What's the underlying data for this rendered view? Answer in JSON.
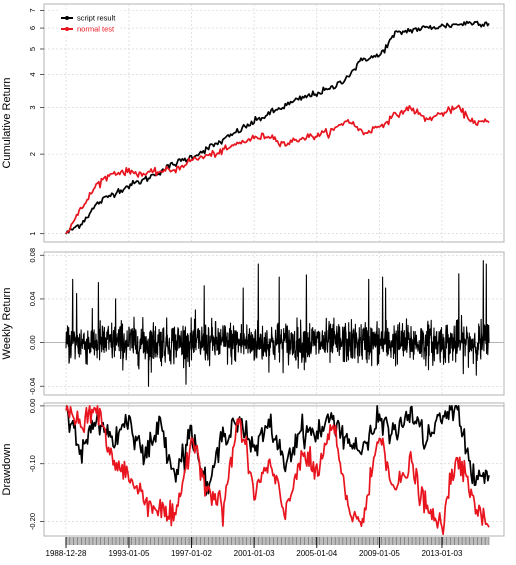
{
  "colors": {
    "script": "#000000",
    "normal": "#e8141e",
    "grid": "#d0d0d0",
    "frame": "#b3b3b3",
    "zero": "#a0a0a0",
    "axis_band": "#bdbdbd"
  },
  "chart_data": [
    {
      "type": "line",
      "panel": "cumulative",
      "ylabel": "Cumulative Return",
      "yscale": "log",
      "yticks": [
        1,
        2,
        3,
        4,
        5,
        6,
        7
      ],
      "ylim": [
        0.93,
        7.4
      ],
      "grid": true,
      "legend": {
        "position": "top-left",
        "entries": [
          "script result",
          "normal test"
        ]
      },
      "x": [
        "1988-12-28",
        "1990-01-03",
        "1991-01-02",
        "1992-01-01",
        "1993-01-05",
        "1994-01-05",
        "1995-01-04",
        "1996-01-03",
        "1997-01-02",
        "1998-01-07",
        "1999-01-06",
        "2000-01-05",
        "2001-01-03",
        "2002-01-02",
        "2003-01-01",
        "2004-01-07",
        "2005-01-04",
        "2006-01-04",
        "2007-01-03",
        "2008-01-02",
        "2009-01-05",
        "2010-01-06",
        "2011-01-05",
        "2012-01-04",
        "2013-01-03",
        "2014-01-01",
        "2015-01-07",
        "2016-01-06"
      ],
      "series": [
        {
          "name": "script result",
          "color": "#000000",
          "values": [
            1.0,
            1.1,
            1.3,
            1.42,
            1.52,
            1.6,
            1.72,
            1.85,
            1.95,
            2.1,
            2.25,
            2.45,
            2.65,
            2.85,
            3.05,
            3.25,
            3.4,
            3.55,
            3.95,
            4.6,
            4.7,
            5.7,
            5.9,
            6.0,
            6.1,
            6.2,
            6.3,
            6.25
          ]
        },
        {
          "name": "normal test",
          "color": "#e8141e",
          "values": [
            1.0,
            1.25,
            1.55,
            1.7,
            1.72,
            1.68,
            1.72,
            1.75,
            1.9,
            1.97,
            2.05,
            2.2,
            2.3,
            2.35,
            2.18,
            2.3,
            2.35,
            2.45,
            2.7,
            2.4,
            2.55,
            2.8,
            3.0,
            2.7,
            2.85,
            3.0,
            2.65,
            2.63
          ]
        }
      ]
    },
    {
      "type": "line",
      "panel": "weekly",
      "ylabel": "Weekly Return",
      "yticks": [
        -0.04,
        0.0,
        0.04,
        0.08
      ],
      "ytick_labels": [
        "-0.04",
        "0.00",
        "0.04",
        "0.08"
      ],
      "ylim": [
        -0.048,
        0.083
      ],
      "grid": true,
      "series": [
        {
          "name": "script result",
          "color": "#000000"
        }
      ],
      "spikes": [
        {
          "x": "1989-06-01",
          "value": 0.058
        },
        {
          "x": "1989-09-01",
          "value": 0.045
        },
        {
          "x": "1991-01-20",
          "value": 0.055
        },
        {
          "x": "1992-03-01",
          "value": 0.04
        },
        {
          "x": "1994-04-10",
          "value": -0.04
        },
        {
          "x": "1997-10-28",
          "value": 0.052
        },
        {
          "x": "2000-04-20",
          "value": 0.05
        },
        {
          "x": "2001-04-10",
          "value": 0.072
        },
        {
          "x": "2002-08-10",
          "value": 0.06
        },
        {
          "x": "2004-05-10",
          "value": 0.062
        },
        {
          "x": "2008-05-01",
          "value": 0.058
        },
        {
          "x": "2009-03-20",
          "value": 0.06
        },
        {
          "x": "2009-06-01",
          "value": 0.05
        },
        {
          "x": "2014-02-01",
          "value": 0.063
        },
        {
          "x": "2015-08-25",
          "value": 0.075
        },
        {
          "x": "2015-11-01",
          "value": 0.072
        }
      ]
    },
    {
      "type": "line",
      "panel": "drawdown",
      "ylabel": "Drawdown",
      "yticks": [
        -0.2,
        -0.1,
        0.0
      ],
      "ytick_labels": [
        "-0.20",
        "-0.10",
        "0.00"
      ],
      "ylim": [
        -0.225,
        0.005
      ],
      "grid": true,
      "xtick_labels": [
        "1988-12-28",
        "1993-01-05",
        "1997-01-02",
        "2001-01-03",
        "2005-01-04",
        "2009-01-05",
        "2013-01-03"
      ],
      "series": [
        {
          "name": "script result",
          "color": "#000000",
          "values": [
            0.0,
            -0.08,
            -0.02,
            -0.06,
            -0.02,
            -0.09,
            -0.03,
            -0.12,
            -0.04,
            -0.15,
            -0.05,
            -0.02,
            -0.08,
            -0.03,
            -0.1,
            -0.04,
            -0.05,
            -0.02,
            -0.06,
            -0.08,
            -0.02,
            -0.05,
            -0.01,
            -0.06,
            -0.02,
            0.0,
            -0.13,
            -0.12
          ]
        },
        {
          "name": "normal test",
          "color": "#e8141e",
          "values": [
            0.0,
            -0.04,
            0.0,
            -0.1,
            -0.12,
            -0.16,
            -0.18,
            -0.2,
            -0.05,
            -0.14,
            -0.18,
            -0.02,
            -0.15,
            -0.1,
            -0.19,
            -0.08,
            -0.12,
            -0.03,
            -0.18,
            -0.2,
            -0.04,
            -0.15,
            -0.1,
            -0.18,
            -0.21,
            -0.08,
            -0.17,
            -0.21
          ]
        }
      ]
    }
  ]
}
